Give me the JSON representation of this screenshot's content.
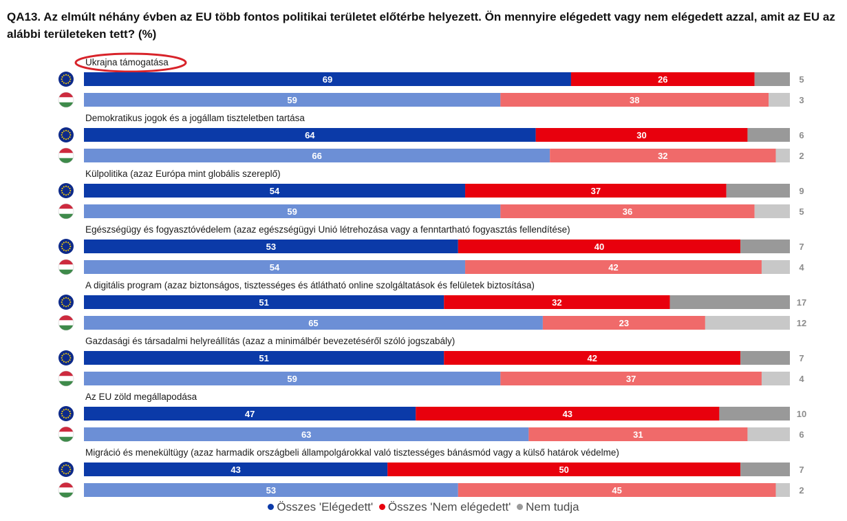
{
  "title": "QA13. Az elmúlt néhány évben az EU több fontos politikai területet előtérbe helyezett. Ön mennyire elégedett vagy nem elégedett azzal, amit az EU az alábbi területeken tett? (%)",
  "legend": [
    {
      "label": "Összes 'Elégedett'",
      "color": "#0b3aa8"
    },
    {
      "label": "Összes 'Nem elégedett'",
      "color": "#e8000d"
    },
    {
      "label": "Nem tudja",
      "color": "#9a9a9a"
    }
  ],
  "colors": {
    "eu_satisfied": "#0b3aa8",
    "eu_not_satisfied": "#e8000d",
    "eu_dont_know": "#999999",
    "hu_satisfied": "#6c8fd6",
    "hu_not_satisfied": "#f06a6a",
    "hu_dont_know": "#c8c8c8",
    "highlight_ellipse": "#d8232a"
  },
  "row_icons": {
    "eu": "eu-flag-icon",
    "hu": "hungary-flag-icon"
  },
  "chart_data": {
    "type": "bar",
    "orientation": "horizontal",
    "stacked": true,
    "xlim": [
      0,
      100
    ],
    "series": [
      {
        "name": "Összes 'Elégedett'"
      },
      {
        "name": "Összes 'Nem elégedett'"
      },
      {
        "name": "Nem tudja"
      }
    ],
    "highlighted_category": "Ukrajna támogatása",
    "categories": [
      {
        "label": "Ukrajna támogatása",
        "eu": [
          69,
          26,
          5
        ],
        "hu": [
          59,
          38,
          3
        ]
      },
      {
        "label": "Demokratikus jogok és a jogállam tiszteletben tartása",
        "eu": [
          64,
          30,
          6
        ],
        "hu": [
          66,
          32,
          2
        ]
      },
      {
        "label": "Külpolitika (azaz Európa mint globális szereplő)",
        "eu": [
          54,
          37,
          9
        ],
        "hu": [
          59,
          36,
          5
        ]
      },
      {
        "label": "Egészségügy és fogyasztóvédelem (azaz egészségügyi Unió létrehozása vagy a fenntartható fogyasztás fellendítése)",
        "eu": [
          53,
          40,
          7
        ],
        "hu": [
          54,
          42,
          4
        ]
      },
      {
        "label": "A digitális program (azaz biztonságos, tisztességes és átlátható online szolgáltatások és felületek biztosítása)",
        "eu": [
          51,
          32,
          17
        ],
        "hu": [
          65,
          23,
          12
        ]
      },
      {
        "label": "Gazdasági és társadalmi helyreállítás (azaz a minimálbér bevezetéséről szóló jogszabály)",
        "eu": [
          51,
          42,
          7
        ],
        "hu": [
          59,
          37,
          4
        ]
      },
      {
        "label": "Az EU zöld megállapodása",
        "eu": [
          47,
          43,
          10
        ],
        "hu": [
          63,
          31,
          6
        ]
      },
      {
        "label": "Migráció és menekültügy (azaz harmadik országbeli állampolgárokkal való tisztességes bánásmód vagy a külső határok védelme)",
        "eu": [
          43,
          50,
          7
        ],
        "hu": [
          53,
          45,
          2
        ]
      }
    ]
  }
}
